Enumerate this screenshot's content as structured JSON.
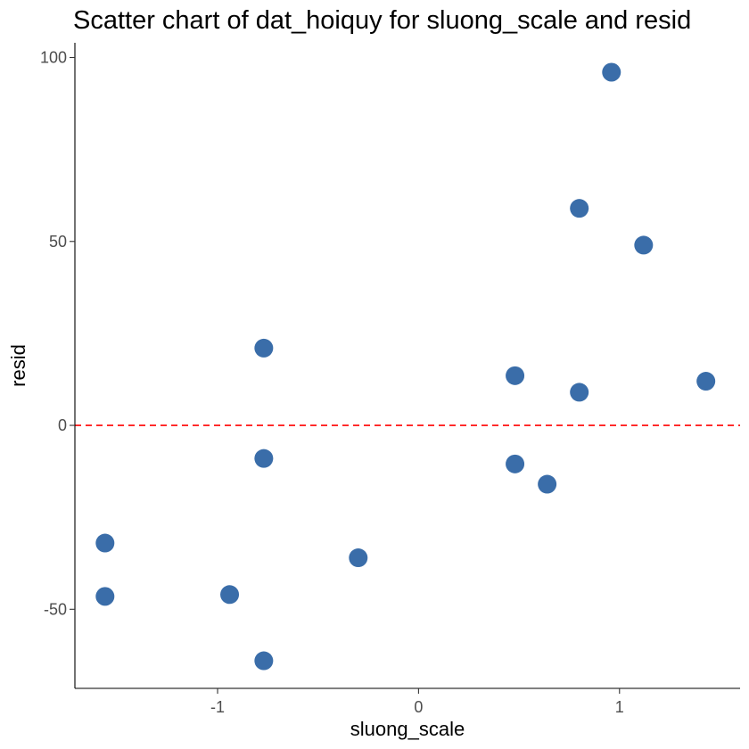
{
  "chart_data": {
    "type": "scatter",
    "title": "Scatter chart of dat_hoiquy for sluong_scale and resid",
    "xlabel": "sluong_scale",
    "ylabel": "resid",
    "x_ticks": [
      -1,
      0,
      1
    ],
    "y_ticks": [
      -50,
      0,
      50,
      100
    ],
    "x_tick_labels": [
      "-1",
      "0",
      "1"
    ],
    "y_tick_labels": [
      "-50",
      "0",
      "50",
      "100"
    ],
    "xlim": [
      -1.71,
      1.6
    ],
    "ylim": [
      -71.5,
      104
    ],
    "grid": false,
    "point_color": "#3a6da9",
    "reference_line": {
      "y": 0,
      "style": "dashed",
      "color": "#ff0000"
    },
    "points": [
      {
        "x": 0.96,
        "y": 96
      },
      {
        "x": 0.8,
        "y": 59
      },
      {
        "x": 1.12,
        "y": 49
      },
      {
        "x": -0.77,
        "y": 21
      },
      {
        "x": 0.48,
        "y": 13.5
      },
      {
        "x": 1.43,
        "y": 12
      },
      {
        "x": 0.8,
        "y": 9
      },
      {
        "x": -0.77,
        "y": -9
      },
      {
        "x": 0.48,
        "y": -10.5
      },
      {
        "x": 0.64,
        "y": -16
      },
      {
        "x": -1.56,
        "y": -32
      },
      {
        "x": -0.3,
        "y": -36
      },
      {
        "x": -1.56,
        "y": -46.5
      },
      {
        "x": -0.94,
        "y": -46
      },
      {
        "x": -0.77,
        "y": -64
      }
    ]
  }
}
